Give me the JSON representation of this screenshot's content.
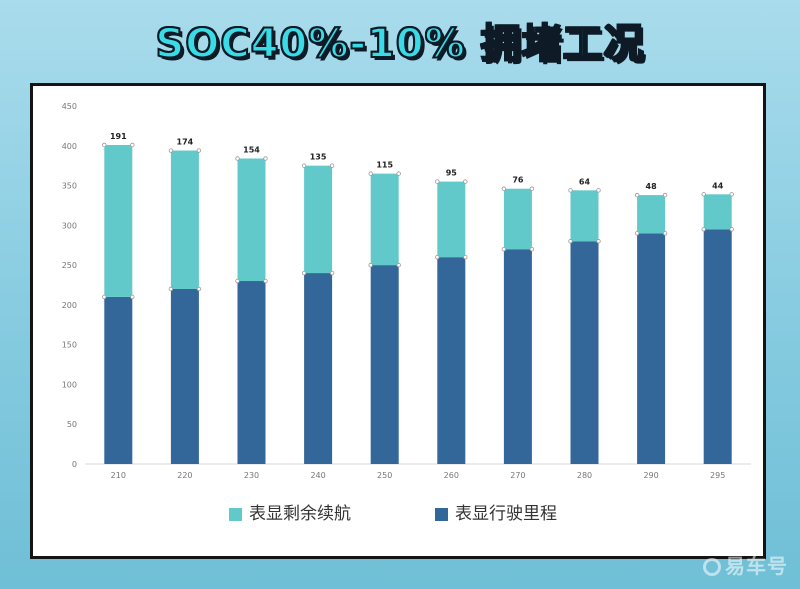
{
  "page": {
    "headline": "SOC40%-10% 拥堵工况",
    "watermark": "易车号"
  },
  "colors": {
    "remaining": "#62c9cb",
    "driven": "#336699",
    "grid": "#e6e6e6",
    "tick_text": "#777777"
  },
  "chart_data": {
    "type": "bar",
    "stacked": true,
    "title": "",
    "xlabel": "",
    "ylabel": "",
    "categories": [
      "210",
      "220",
      "230",
      "240",
      "250",
      "260",
      "270",
      "280",
      "290",
      "295"
    ],
    "ylim": [
      0,
      450
    ],
    "yticks": [
      0,
      50,
      100,
      150,
      200,
      250,
      300,
      350,
      400,
      450
    ],
    "grid": false,
    "legend_position": "bottom",
    "series": [
      {
        "name": "表显行驶里程",
        "color": "#336699",
        "values": [
          210,
          220,
          230,
          240,
          250,
          260,
          270,
          280,
          290,
          295
        ]
      },
      {
        "name": "表显剩余续航",
        "color": "#62c9cb",
        "values": [
          191,
          174,
          154,
          135,
          115,
          95,
          76,
          64,
          48,
          44
        ],
        "data_labels": [
          "191",
          "174",
          "154",
          "135",
          "115",
          "95",
          "76",
          "64",
          "48",
          "44"
        ]
      }
    ],
    "legend": [
      {
        "name": "表显剩余续航",
        "color": "#62c9cb"
      },
      {
        "name": "表显行驶里程",
        "color": "#336699"
      }
    ]
  }
}
